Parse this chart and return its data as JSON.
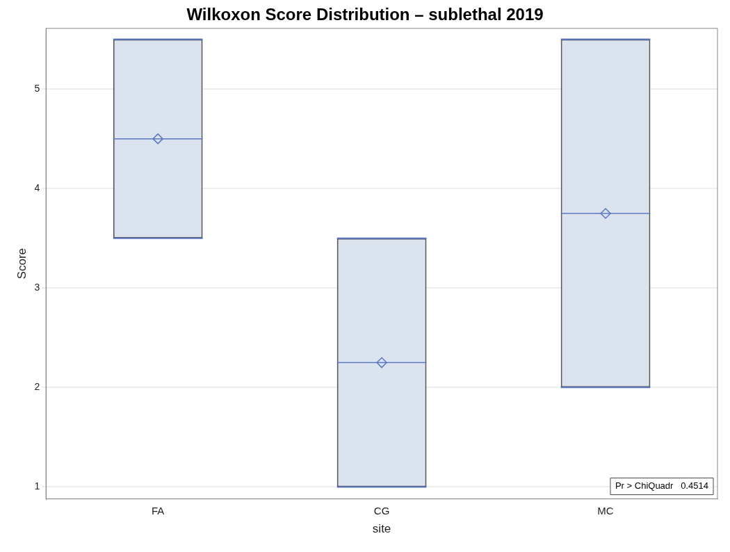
{
  "chart_data": {
    "type": "box",
    "title": "Wilkoxon Score Distribution – sublethal 2019",
    "xlabel": "site",
    "ylabel": "Score",
    "categories": [
      "FA",
      "CG",
      "MC"
    ],
    "boxes": [
      {
        "low": 3.5,
        "q1": 3.5,
        "median": 4.5,
        "q3": 5.5,
        "high": 5.5,
        "mean": 4.5
      },
      {
        "low": 1,
        "q1": 1,
        "median": 2.25,
        "q3": 3.5,
        "high": 3.5,
        "mean": 2.25
      },
      {
        "low": 2,
        "q1": 2,
        "median": 3.75,
        "q3": 5.5,
        "high": 5.5,
        "mean": 3.75
      }
    ],
    "color": "#555555",
    "ylim": [
      0.88,
      5.61
    ],
    "yticks": [
      1,
      2,
      3,
      4,
      5
    ],
    "grid": "y",
    "legend": false,
    "marker": "diamond",
    "annotations": [
      "Pr > ChiQuadr   0.4514"
    ]
  }
}
